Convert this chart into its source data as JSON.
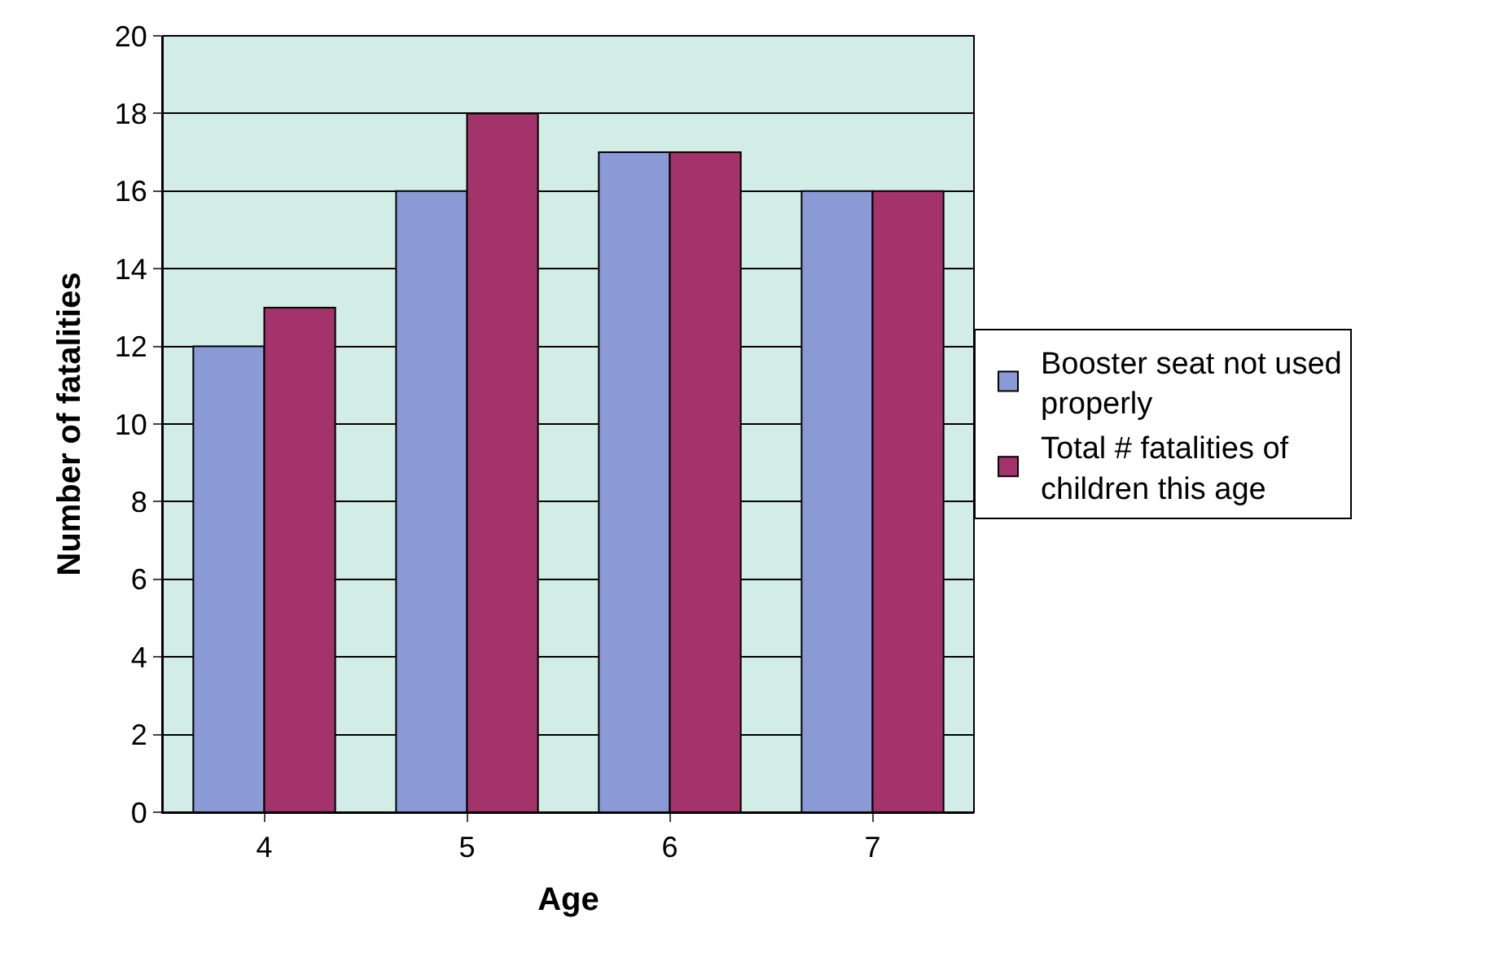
{
  "chart_data": {
    "type": "bar",
    "xlabel": "Age",
    "ylabel": "Number of fatalities",
    "categories": [
      "4",
      "5",
      "6",
      "7"
    ],
    "series": [
      {
        "name": "Booster seat not used properly",
        "color": "#8a9ad6",
        "values": [
          12,
          16,
          17,
          16
        ]
      },
      {
        "name": "Total # fatalities of children this age",
        "color": "#a3336a",
        "values": [
          13,
          18,
          17,
          16
        ]
      }
    ],
    "ylim": [
      0,
      20
    ],
    "yticks": [
      0,
      2,
      4,
      6,
      8,
      10,
      12,
      14,
      16,
      18,
      20
    ],
    "grid": "y",
    "legend": "right"
  }
}
